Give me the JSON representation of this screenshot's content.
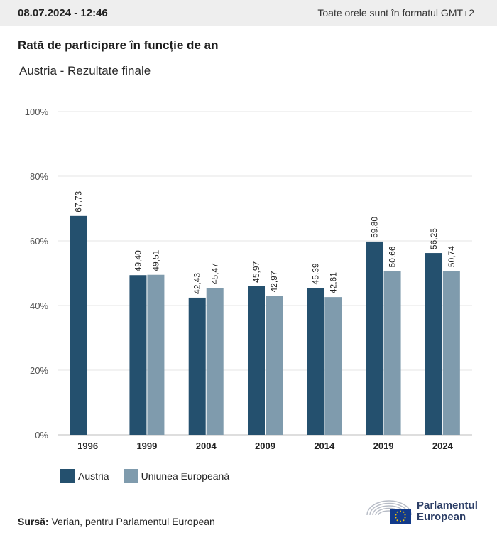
{
  "header": {
    "datetime": "08.07.2024 - 12:46",
    "timezone_note": "Toate orele sunt în formatul GMT+2"
  },
  "title": "Rată de participare în funcție de an",
  "subtitle": "Austria - Rezultate finale",
  "chart_data": {
    "type": "bar",
    "categories": [
      "1996",
      "1999",
      "2004",
      "2009",
      "2014",
      "2019",
      "2024"
    ],
    "series": [
      {
        "name": "Austria",
        "values": [
          67.73,
          49.4,
          42.43,
          45.97,
          45.39,
          59.8,
          56.25
        ],
        "labels": [
          "67,73",
          "49,40",
          "42,43",
          "45,97",
          "45,39",
          "59,80",
          "56,25"
        ],
        "color": "#24506e"
      },
      {
        "name": "Uniunea Europeană",
        "values": [
          null,
          49.51,
          45.47,
          42.97,
          42.61,
          50.66,
          50.74
        ],
        "labels": [
          "",
          "49,51",
          "45,47",
          "42,97",
          "42,61",
          "50,66",
          "50,74"
        ],
        "color": "#7f9bad"
      }
    ],
    "y_ticks": [
      "0%",
      "20%",
      "40%",
      "60%",
      "80%",
      "100%"
    ],
    "ylim": [
      0,
      100
    ],
    "grid": true,
    "legend_position": "bottom-left"
  },
  "source": {
    "label": "Sursă:",
    "text": "Verian, pentru Parlamentul European"
  },
  "logo": {
    "line1": "Parlamentul",
    "line2": "European"
  }
}
